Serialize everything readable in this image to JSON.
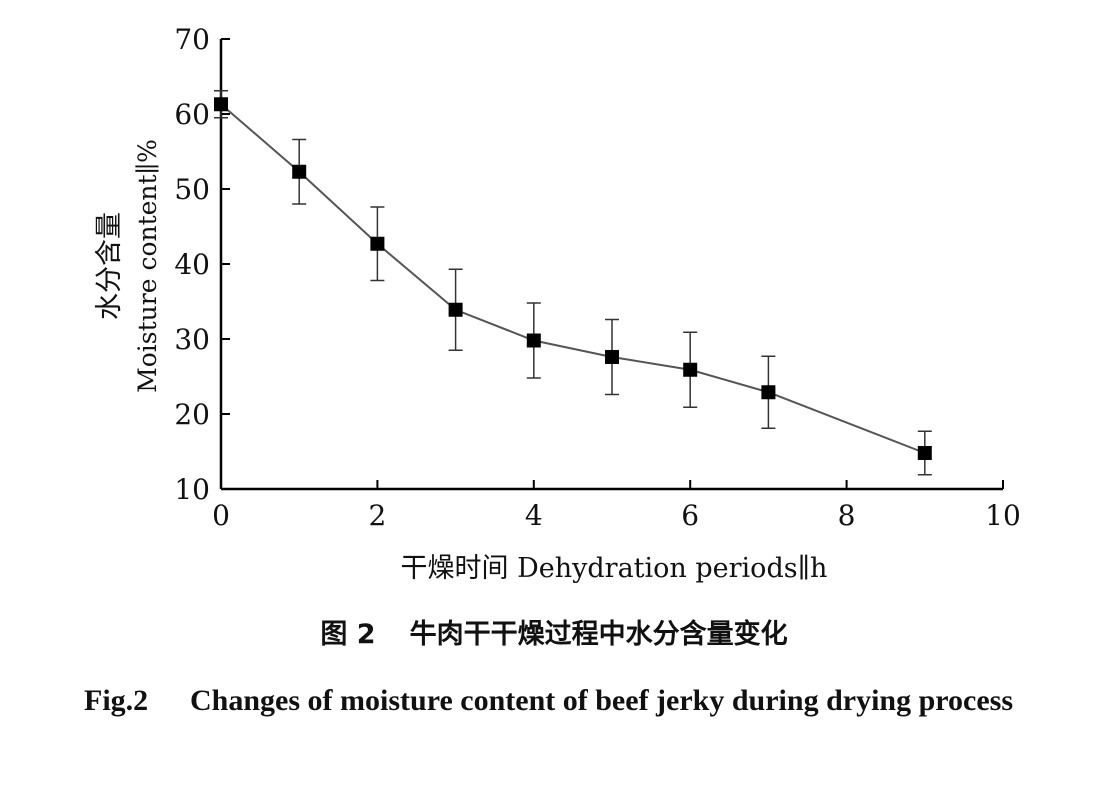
{
  "chart_data": {
    "type": "line",
    "title": "",
    "xlabel": "干燥时间 Dehydration periods∥h",
    "ylabel_line1": "水分含量",
    "ylabel_line2": "Moisture content∥%",
    "xlim": [
      0,
      10
    ],
    "ylim": [
      10,
      70
    ],
    "x_ticks": [
      "0",
      "2",
      "4",
      "6",
      "8",
      "10"
    ],
    "y_ticks": [
      "10",
      "20",
      "30",
      "40",
      "50",
      "60",
      "70"
    ],
    "grid": false,
    "legend": "none",
    "series": [
      {
        "x": [
          0,
          1,
          2,
          3,
          4,
          5,
          6,
          7,
          9
        ],
        "y": [
          61.3,
          52.3,
          42.7,
          33.9,
          29.8,
          27.6,
          25.9,
          22.9,
          14.8
        ],
        "error": [
          1.8,
          4.3,
          4.9,
          5.4,
          5.0,
          5.0,
          5.0,
          4.8,
          2.9
        ]
      }
    ],
    "colors": {
      "line": "#555555",
      "marker": "#000000",
      "axis": "#000000"
    }
  },
  "caption": {
    "cn_number": "图 2",
    "cn_title": "牛肉干干燥过程中水分含量变化",
    "en_number": "Fig.2",
    "en_title": "Changes of moisture content of beef jerky during drying process"
  }
}
